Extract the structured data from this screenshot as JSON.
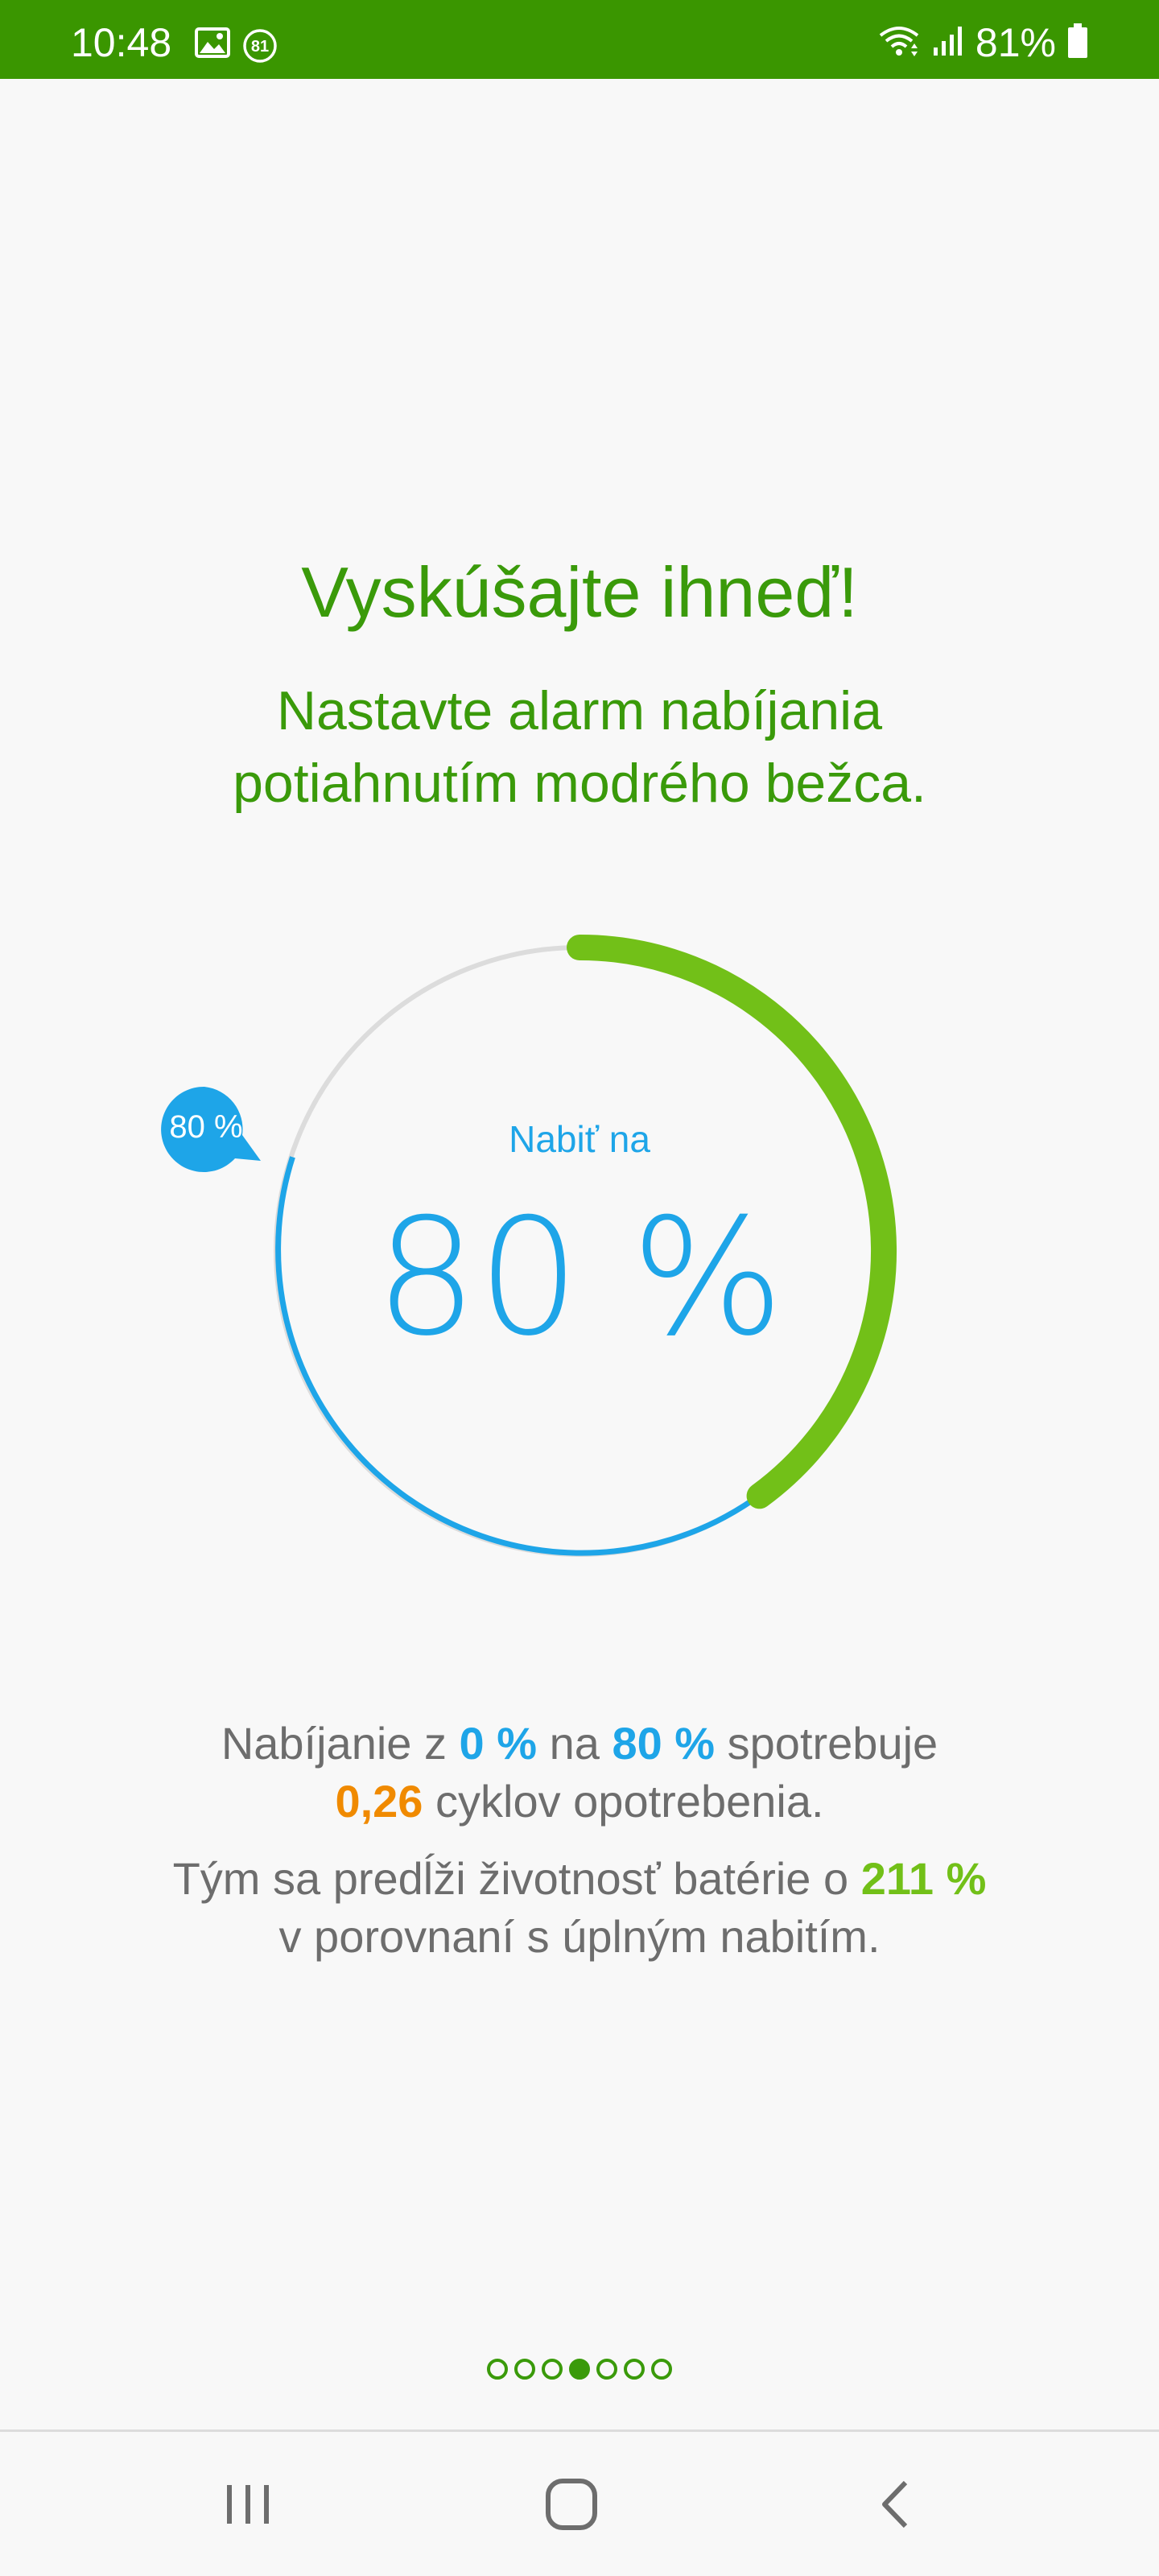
{
  "status_bar": {
    "time": "10:48",
    "left_icons": [
      "image-icon",
      "notification-count-icon"
    ],
    "notification_count": "81",
    "right_icons": [
      "wifi-icon",
      "signal-icon",
      "battery-icon"
    ],
    "battery_text": "81%"
  },
  "title": "Vyskúšajte ihneď!",
  "subtitle_line1": "Nastavte alarm nabíjania",
  "subtitle_line2": "potiahnutím modrého bežca.",
  "dial": {
    "caption": "Nabiť na",
    "value_text": "80 %",
    "thumb_label": "80 %",
    "target_percent": 80,
    "colors": {
      "blue": "#1ea5e8",
      "green": "#72c018",
      "track": "#dcdcdc"
    }
  },
  "info": {
    "line1_a": "Nabíjanie z ",
    "line1_from": "0 %",
    "line1_b": " na ",
    "line1_to": "80 %",
    "line1_c": " spotrebuje",
    "line2_cycles": "0,26",
    "line2_b": " cyklov opotrebenia.",
    "line3_a": "Tým sa predĺži životnosť batérie o ",
    "line3_gain": "211 %",
    "line4": "v porovnaní s úplným nabitím."
  },
  "pager": {
    "count": 7,
    "active_index": 3
  },
  "nav": [
    "recent-apps-icon",
    "home-icon",
    "back-icon"
  ],
  "colors": {
    "accent_green": "#3a9600",
    "text_gray": "#6d6d6d"
  }
}
